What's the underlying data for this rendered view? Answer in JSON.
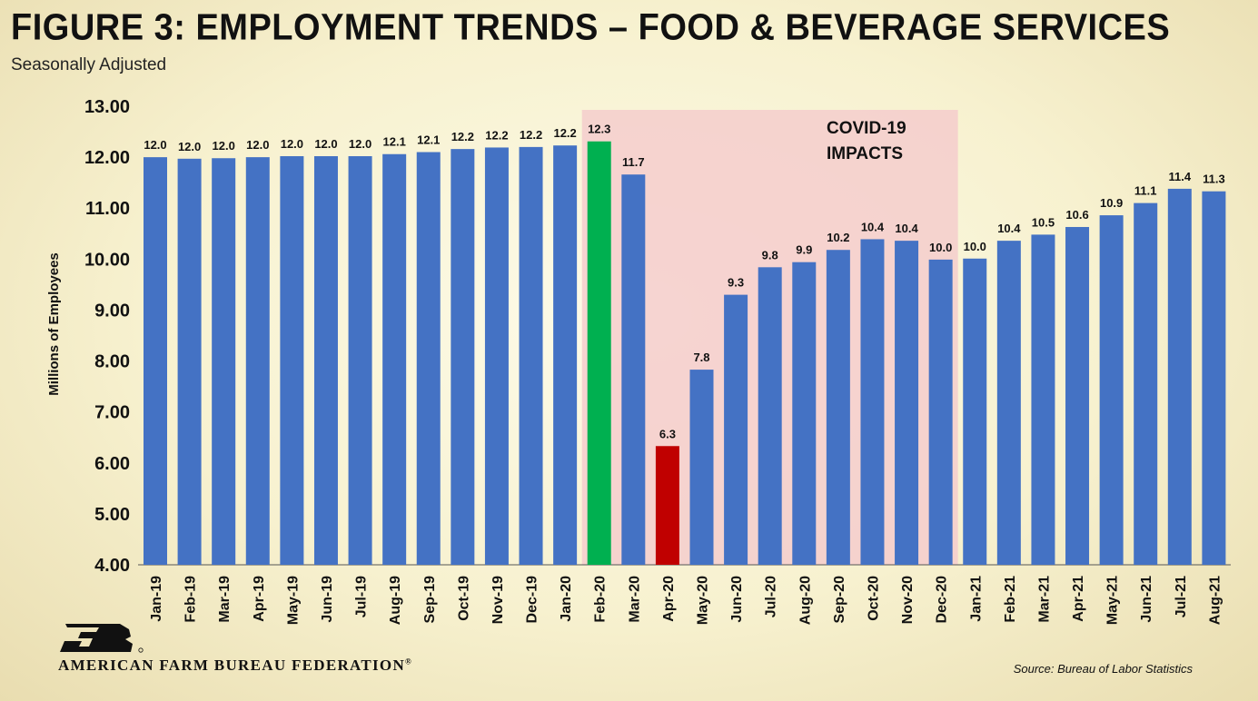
{
  "header": {
    "title": "FIGURE 3: EMPLOYMENT TRENDS – FOOD & BEVERAGE SERVICES",
    "subtitle": "Seasonally Adjusted"
  },
  "footer": {
    "org_name": "AMERICAN FARM BUREAU FEDERATION",
    "org_mark": "®",
    "source": "Source: Bureau of Labor Statistics"
  },
  "colors": {
    "bar": "#4472c4",
    "peak": "#00b050",
    "trough": "#c00000",
    "shade": "#f4cccc",
    "logo": "#111111"
  },
  "chart_data": {
    "type": "bar",
    "title": "FIGURE 3: EMPLOYMENT TRENDS – FOOD & BEVERAGE SERVICES",
    "subtitle": "Seasonally Adjusted",
    "xlabel": "",
    "ylabel": "Millions of Employees",
    "ylim": [
      4,
      13
    ],
    "yticks": [
      "4.00",
      "5.00",
      "6.00",
      "7.00",
      "8.00",
      "9.00",
      "10.00",
      "11.00",
      "12.00",
      "13.00"
    ],
    "grid": false,
    "categories": [
      "Jan-19",
      "Feb-19",
      "Mar-19",
      "Apr-19",
      "May-19",
      "Jun-19",
      "Jul-19",
      "Aug-19",
      "Sep-19",
      "Oct-19",
      "Nov-19",
      "Dec-19",
      "Jan-20",
      "Feb-20",
      "Mar-20",
      "Apr-20",
      "May-20",
      "Jun-20",
      "Jul-20",
      "Aug-20",
      "Sep-20",
      "Oct-20",
      "Nov-20",
      "Dec-20",
      "Jan-21",
      "Feb-21",
      "Mar-21",
      "Apr-21",
      "May-21",
      "Jun-21",
      "Jul-21",
      "Aug-21"
    ],
    "values": [
      12.0,
      11.97,
      11.98,
      12.0,
      12.02,
      12.02,
      12.02,
      12.06,
      12.1,
      12.16,
      12.19,
      12.2,
      12.23,
      12.31,
      11.66,
      6.33,
      7.83,
      9.3,
      9.84,
      9.94,
      10.18,
      10.39,
      10.36,
      9.99,
      10.01,
      10.36,
      10.48,
      10.63,
      10.86,
      11.1,
      11.38,
      11.33
    ],
    "labels": [
      "12.0",
      "12.0",
      "12.0",
      "12.0",
      "12.0",
      "12.0",
      "12.0",
      "12.1",
      "12.1",
      "12.2",
      "12.2",
      "12.2",
      "12.2",
      "12.3",
      "11.7",
      "6.3",
      "7.8",
      "9.3",
      "9.8",
      "9.9",
      "10.2",
      "10.4",
      "10.4",
      "10.0",
      "10.0",
      "10.4",
      "10.5",
      "10.6",
      "10.9",
      "11.1",
      "11.4",
      "11.3"
    ],
    "highlight": {
      "Feb-20": "peak",
      "Apr-20": "trough"
    },
    "annotation": {
      "lines": [
        "COVID-19",
        "IMPACTS"
      ],
      "shaded_from": "Feb-20",
      "shaded_to": "Dec-20"
    }
  }
}
